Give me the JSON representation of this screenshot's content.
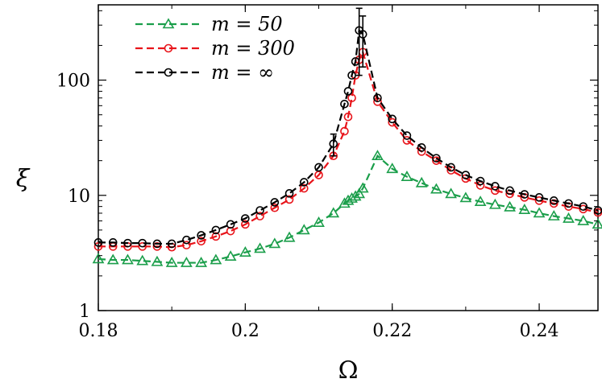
{
  "chart_data": {
    "type": "line",
    "xlabel": "Ω",
    "ylabel": "ξ",
    "xlim": [
      0.18,
      0.248
    ],
    "ylim": [
      1,
      450
    ],
    "yscale": "log",
    "xticks": [
      0.18,
      0.2,
      0.22,
      0.24
    ],
    "xtick_labels": [
      "0.18",
      "0.2",
      "0.22",
      "0.24"
    ],
    "yticks": [
      1,
      10,
      100
    ],
    "ytick_labels": [
      "1",
      "10",
      "100"
    ],
    "legend_position": "top-left",
    "series": [
      {
        "name": "m = 50",
        "color": "#1a9e4a",
        "marker": "triangle",
        "x": [
          0.18,
          0.182,
          0.184,
          0.186,
          0.188,
          0.19,
          0.192,
          0.194,
          0.196,
          0.198,
          0.2,
          0.202,
          0.204,
          0.206,
          0.208,
          0.21,
          0.212,
          0.2135,
          0.214,
          0.2145,
          0.215,
          0.2155,
          0.216,
          0.218,
          0.22,
          0.222,
          0.224,
          0.226,
          0.228,
          0.23,
          0.232,
          0.234,
          0.236,
          0.238,
          0.24,
          0.242,
          0.244,
          0.246,
          0.248
        ],
        "y": [
          2.8,
          2.75,
          2.75,
          2.7,
          2.65,
          2.6,
          2.6,
          2.6,
          2.75,
          2.95,
          3.2,
          3.45,
          3.8,
          4.3,
          5.0,
          5.8,
          7.0,
          8.5,
          9.0,
          9.4,
          9.8,
          10.3,
          11.5,
          22.0,
          17.0,
          14.5,
          12.8,
          11.3,
          10.3,
          9.5,
          8.8,
          8.3,
          7.9,
          7.5,
          7.0,
          6.6,
          6.3,
          6.0,
          5.6
        ]
      },
      {
        "name": "m = 300",
        "color": "#e8141a",
        "marker": "circle",
        "x": [
          0.18,
          0.182,
          0.184,
          0.186,
          0.188,
          0.19,
          0.192,
          0.194,
          0.196,
          0.198,
          0.2,
          0.202,
          0.204,
          0.206,
          0.208,
          0.21,
          0.212,
          0.2135,
          0.214,
          0.2145,
          0.215,
          0.2155,
          0.216,
          0.218,
          0.22,
          0.222,
          0.224,
          0.226,
          0.228,
          0.23,
          0.232,
          0.234,
          0.236,
          0.238,
          0.24,
          0.242,
          0.244,
          0.246,
          0.248
        ],
        "y": [
          3.6,
          3.6,
          3.6,
          3.6,
          3.6,
          3.55,
          3.7,
          4.0,
          4.4,
          4.9,
          5.6,
          6.6,
          7.8,
          9.2,
          11.5,
          15.0,
          22.0,
          36.0,
          48.0,
          70.0,
          110.0,
          150.0,
          175.0,
          65.0,
          43.0,
          30.0,
          24.0,
          20.0,
          16.5,
          14.0,
          12.2,
          11.0,
          10.3,
          9.6,
          9.0,
          8.5,
          8.0,
          7.6,
          7.1
        ]
      },
      {
        "name": "m = ∞",
        "color": "#000000",
        "marker": "circle",
        "x": [
          0.18,
          0.182,
          0.184,
          0.186,
          0.188,
          0.19,
          0.192,
          0.194,
          0.196,
          0.198,
          0.2,
          0.202,
          0.204,
          0.206,
          0.208,
          0.21,
          0.212,
          0.2135,
          0.214,
          0.2145,
          0.215,
          0.2155,
          0.216,
          0.218,
          0.22,
          0.222,
          0.224,
          0.226,
          0.228,
          0.23,
          0.232,
          0.234,
          0.236,
          0.238,
          0.24,
          0.242,
          0.244,
          0.246,
          0.248
        ],
        "y": [
          3.9,
          3.9,
          3.85,
          3.85,
          3.8,
          3.8,
          4.1,
          4.5,
          5.0,
          5.6,
          6.3,
          7.4,
          8.7,
          10.4,
          13.0,
          17.5,
          28.0,
          62.0,
          80.0,
          110.0,
          145.0,
          270.0,
          250.0,
          70.0,
          46.0,
          33.0,
          26.0,
          21.0,
          17.5,
          15.0,
          13.3,
          12.0,
          11.0,
          10.2,
          9.6,
          9.0,
          8.5,
          8.0,
          7.4
        ],
        "error_bars": [
          {
            "x": 0.212,
            "y_low": 22.0,
            "y_high": 34.0
          },
          {
            "x": 0.2155,
            "y_low": 110.0,
            "y_high": 420.0
          },
          {
            "x": 0.216,
            "y_low": 130.0,
            "y_high": 360.0
          }
        ]
      }
    ]
  }
}
